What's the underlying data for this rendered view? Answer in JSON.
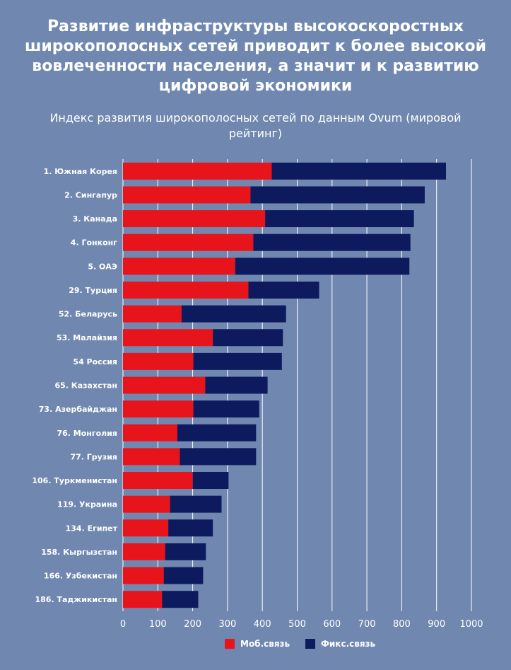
{
  "title": "Развитие инфраструктуры высокоскоростных широкополосных сетей приводит к более высокой вовлеченности населения, а значит и к развитию цифровой экономики",
  "colors": {
    "background": "#7088b0",
    "mobile": "#e8141c",
    "fixed": "#0e1a5e",
    "grid": "#ffffff",
    "text": "#ffffff"
  },
  "chart_data": {
    "type": "bar",
    "orientation": "horizontal",
    "stacked": true,
    "title": "Индекс развития широкополосных сетей по данным Ovum (мировой рейтинг)",
    "categories": [
      "1. Южная Корея",
      "2. Сингапур",
      "3. Канада",
      "4. Гонконг",
      "5. ОАЭ",
      "29. Турция",
      "52. Беларусь",
      "53. Малайзия",
      "54 Россия",
      "65. Казахстан",
      "73. Азербайджан",
      "76. Монголия",
      "77. Грузия",
      "106. Туркменистан",
      "119. Украина",
      "134. Египет",
      "158. Кыргызстан",
      "166. Узбекистан",
      "186. Таджикистан"
    ],
    "series": [
      {
        "name": "Моб.связь",
        "color": "#e8141c",
        "values": [
          427,
          366,
          408,
          374,
          322,
          360,
          168,
          258,
          202,
          236,
          202,
          156,
          163,
          200,
          135,
          130,
          121,
          117,
          112
        ]
      },
      {
        "name": "Фикс.связь",
        "color": "#0e1a5e",
        "values": [
          500,
          500,
          427,
          451,
          500,
          203,
          300,
          201,
          254,
          179,
          189,
          226,
          219,
          103,
          148,
          128,
          117,
          113,
          104
        ]
      }
    ],
    "xlim": [
      0,
      1000
    ],
    "xticks": [
      "0",
      "100",
      "200",
      "300",
      "400",
      "500",
      "600",
      "700",
      "800",
      "900",
      "1000"
    ],
    "grid": true,
    "legend": "bottom"
  }
}
